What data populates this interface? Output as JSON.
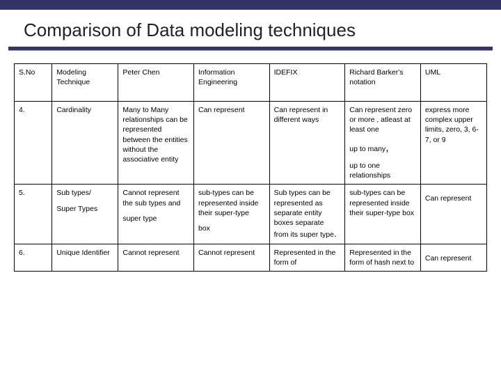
{
  "colors": {
    "accent": "#333366",
    "text": "#222222",
    "border": "#000000",
    "background": "#ffffff"
  },
  "title": "Comparison of Data modeling techniques",
  "table": {
    "columns": [
      "S.No",
      "Modeling Technique",
      "Peter Chen",
      "Information Engineering",
      "IDEFIX",
      "Richard Barker's notation",
      "UML"
    ],
    "rows": [
      {
        "sno": "4.",
        "tech": "Cardinality",
        "chen": "Many to Many relationships can be represented between the entities without the associative entity",
        "ie": "Can represent",
        "idefix": "Can represent in different ways",
        "barker_blocks": [
          "Can represent zero or more , atleast at least one",
          "up to many",
          "up to one relationships"
        ],
        "uml": "express more complex upper limits, zero, 3, 6-7, or 9"
      },
      {
        "sno": "5.",
        "tech_blocks": [
          "Sub types/",
          "Super Types"
        ],
        "chen_blocks": [
          "Cannot represent the sub types and",
          "super type"
        ],
        "ie_blocks": [
          "sub-types can be represented inside their super-type",
          "box"
        ],
        "idefix": "Sub types can be represented as separate entity boxes separate from its super type",
        "barker": "sub-types can be represented inside their super-type box",
        "uml_blocks": [
          "",
          "Can represent"
        ]
      },
      {
        "sno": "6.",
        "tech": "Unique Identifier",
        "chen": "Cannot represent",
        "ie": "Cannot represent",
        "idefix": "Represented in the form of",
        "barker": "Represented in the form of hash next to",
        "uml_blocks": [
          "",
          "Can represent"
        ]
      }
    ]
  }
}
